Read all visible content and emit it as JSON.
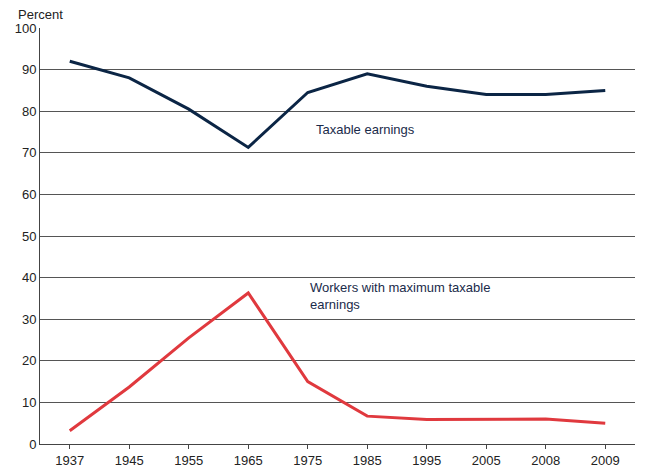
{
  "chart_data": {
    "type": "line",
    "y_label": "Percent",
    "categories": [
      "1937",
      "1945",
      "1955",
      "1965",
      "1975",
      "1985",
      "1995",
      "2005",
      "2008",
      "2009"
    ],
    "series": [
      {
        "name": "Taxable earnings",
        "color": "#0b2545",
        "values": [
          92,
          88,
          80.5,
          71.3,
          84.5,
          89,
          86,
          84,
          84,
          85
        ]
      },
      {
        "name": "Workers with maximum taxable earnings",
        "color": "#e0393e",
        "values": [
          3.2,
          13.7,
          25.5,
          36.3,
          15,
          6.7,
          5.9,
          6,
          6,
          5
        ]
      }
    ],
    "ylim": [
      0,
      100
    ],
    "yticks": [
      0,
      10,
      20,
      30,
      40,
      50,
      60,
      70,
      80,
      90,
      100
    ],
    "grid": true
  }
}
